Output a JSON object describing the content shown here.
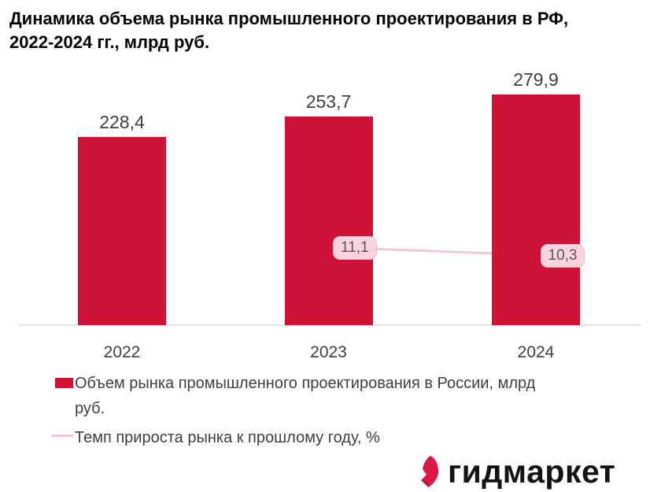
{
  "title": "Динамика объема рынка промышленного проектирования в РФ,\n2022-2024 гг., млрд руб.",
  "chart_data": {
    "type": "bar",
    "title": "Динамика объема рынка промышленного проектирования в РФ, 2022-2024 гг., млрд руб.",
    "categories": [
      "2022",
      "2023",
      "2024"
    ],
    "series": [
      {
        "name": "Объем рынка промышленного проектирования в России, млрд руб.",
        "type": "bar",
        "values": [
          228.4,
          253.7,
          279.9
        ],
        "labels": [
          "228,4",
          "253,7",
          "279,9"
        ],
        "color": "#ce1238"
      },
      {
        "name": "Темп прироста рынка к прошлому году, %",
        "type": "line",
        "values": [
          null,
          11.1,
          10.3
        ],
        "labels": [
          null,
          "11,1",
          "10,3"
        ],
        "color": "#f3c7d5"
      }
    ],
    "ylim": [
      0,
      320
    ],
    "grid": false,
    "legend_position": "bottom",
    "decimal_separator": ","
  },
  "legend": {
    "items": [
      {
        "label": "Объем рынка промышленного проектирования в России, млрд\nруб.",
        "marker": "square",
        "color": "#ce1238"
      },
      {
        "label": "Темп прироста рынка к прошлому году, %",
        "marker": "line",
        "color": "#f3c7d5"
      }
    ]
  },
  "logo": {
    "wordmark": "гидмаркет",
    "icon": "gidmarket-flame-icon",
    "icon_color": "#dd1745",
    "icon_shade_color": "#9e1b3c"
  },
  "colors": {
    "bar": "#ce1238",
    "growth_line": "#f3c7d5",
    "growth_label_bg": "#f8d4df",
    "growth_label_border": "#f2becf",
    "growth_label_text": "#595959",
    "value_label_text": "#404040",
    "axis_label_text": "#404040",
    "legend_text": "#404040",
    "axis_line": "#e4e4e4",
    "title_text": "#000000"
  }
}
